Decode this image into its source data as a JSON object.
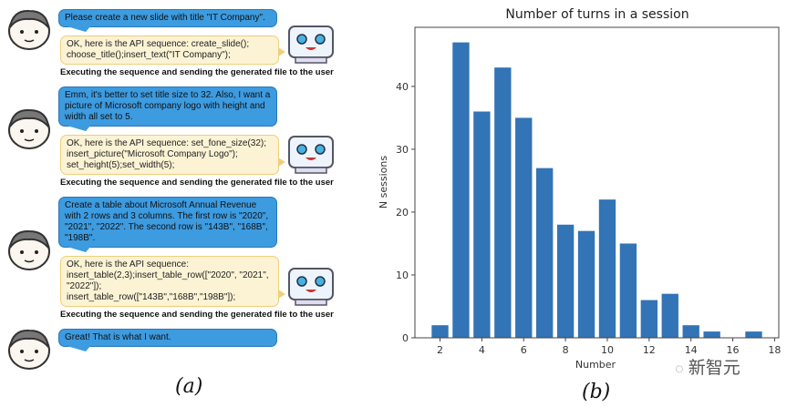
{
  "panel_a": {
    "caption": "(a)",
    "messages": [
      {
        "role": "user",
        "text": "Please create a new slide with title \"IT Company\"."
      },
      {
        "role": "bot",
        "text": "OK, here is the API sequence: create_slide(); choose_title();insert_text(\"IT Company\");"
      },
      {
        "role": "status",
        "text": "Executing the sequence and sending the generated file to the user"
      },
      {
        "role": "user",
        "text": "Emm, it's better to set title size to 32. Also, I want a picture of Microsoft company logo with height and width all set to 5."
      },
      {
        "role": "bot",
        "text": "OK, here is the API sequence: set_fone_size(32); insert_picture(\"Microsoft Company Logo\");  set_height(5);set_width(5);"
      },
      {
        "role": "status",
        "text": "Executing the sequence and sending the generated file to the user"
      },
      {
        "role": "user",
        "text": "Create a table about Microsoft Annual Revenue with 2 rows and 3 columns. The first row is \"2020\", \"2021\", \"2022\". The second row is \"143B\", \"168B\", \"198B\"."
      },
      {
        "role": "bot",
        "text": "OK, here is the API sequence: insert_table(2,3);insert_table_row([\"2020\", \"2021\", \"2022\"]); insert_table_row([\"143B\",\"168B\",\"198B\"]);"
      },
      {
        "role": "status",
        "text": "Executing the sequence and sending the generated file to the user"
      },
      {
        "role": "user",
        "text": "Great! That is what I want."
      }
    ],
    "colors": {
      "user_bubble": "#3d9be0",
      "bot_bubble": "#fbf3d4",
      "bot_border": "#efcf7a"
    }
  },
  "panel_b": {
    "caption": "(b)"
  },
  "watermark": "新智元",
  "chart_data": {
    "type": "bar",
    "title": "Number of turns in a session",
    "xlabel": "Number",
    "ylabel": "N sessions",
    "x": [
      2,
      3,
      4,
      5,
      6,
      7,
      8,
      9,
      10,
      11,
      12,
      13,
      14,
      15,
      16,
      17
    ],
    "values": [
      2,
      47,
      36,
      43,
      35,
      27,
      18,
      17,
      22,
      15,
      6,
      7,
      2,
      1,
      0,
      1
    ],
    "xlim": [
      0.8,
      18.2
    ],
    "ylim": [
      0,
      49.4
    ],
    "xticks": [
      2,
      4,
      6,
      8,
      10,
      12,
      14,
      16,
      18
    ],
    "yticks": [
      0,
      10,
      20,
      30,
      40
    ],
    "bar_color": "#3274b5",
    "grid": false
  }
}
